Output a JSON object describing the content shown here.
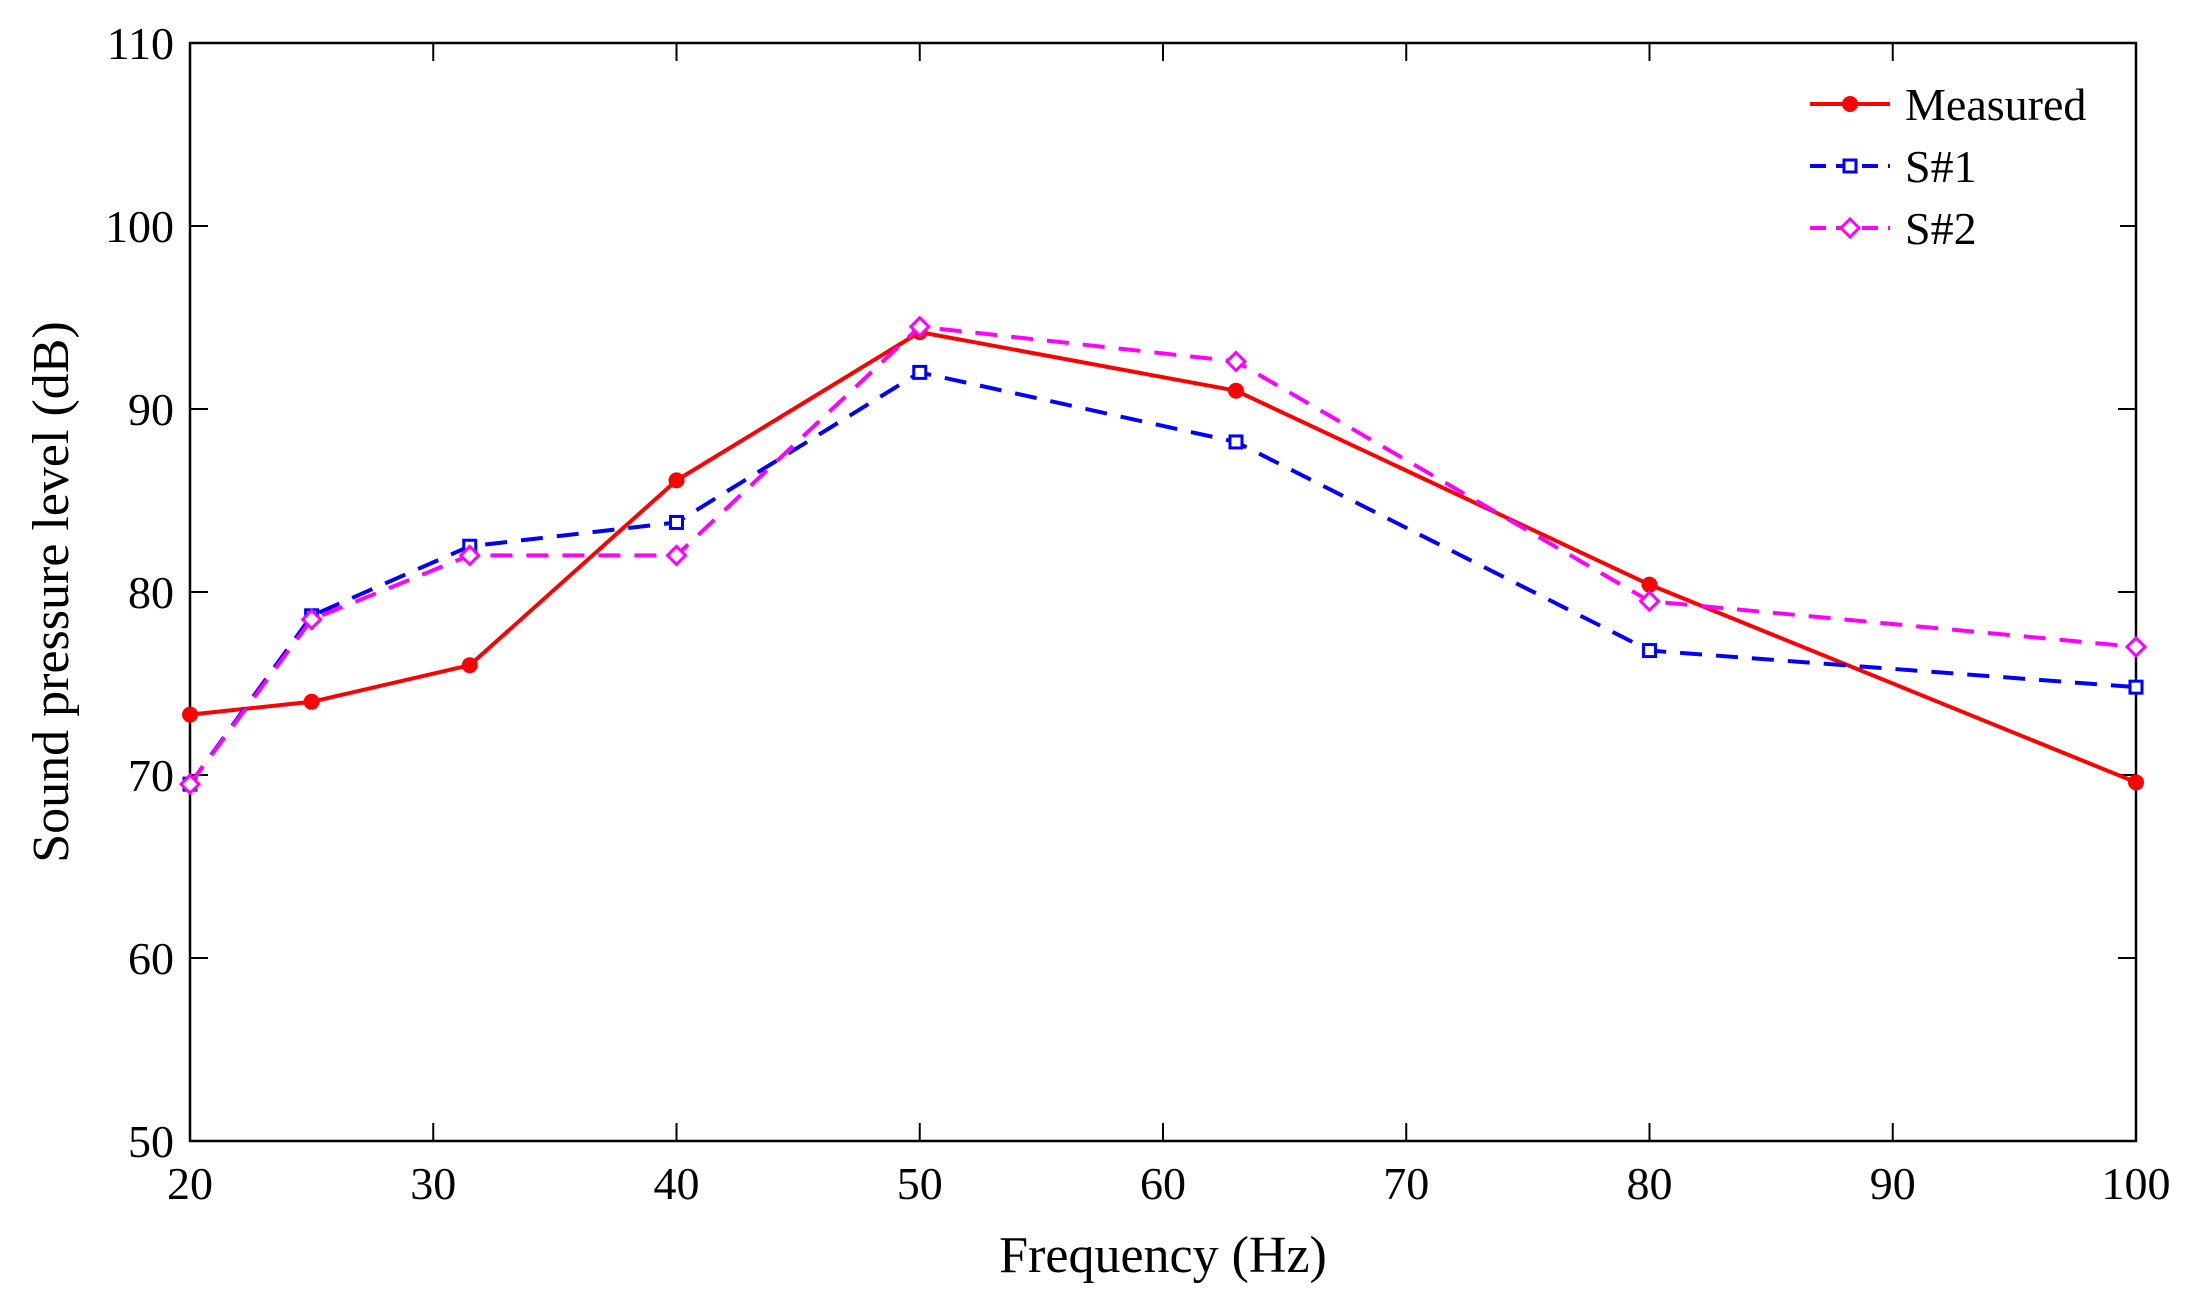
{
  "chart_data": {
    "type": "line",
    "title": "",
    "xlabel": "Frequency (Hz)",
    "ylabel": "Sound pressure level (dB)",
    "xlim": [
      20,
      100
    ],
    "ylim": [
      50,
      110
    ],
    "xticks": [
      20,
      30,
      40,
      50,
      60,
      70,
      80,
      90,
      100
    ],
    "yticks": [
      50,
      60,
      70,
      80,
      90,
      100,
      110
    ],
    "grid": false,
    "legend_position": "top-right",
    "x": [
      20,
      25,
      31.5,
      40,
      50,
      63,
      80,
      100
    ],
    "series": [
      {
        "name": "Measured",
        "color": "#ff0000",
        "line_style": "solid",
        "marker": "filled-circle",
        "values": [
          73.3,
          74.0,
          76.0,
          86.1,
          94.2,
          91.0,
          80.4,
          69.6
        ]
      },
      {
        "name": "S#1",
        "color": "#0000ff",
        "line_style": "dashed",
        "marker": "open-square",
        "values": [
          69.5,
          78.7,
          82.5,
          83.8,
          92.0,
          88.2,
          76.8,
          74.8
        ]
      },
      {
        "name": "S#2",
        "color": "#ff00ff",
        "line_style": "dashed",
        "marker": "open-diamond",
        "values": [
          69.5,
          78.5,
          82.0,
          82.0,
          94.5,
          92.6,
          79.5,
          77.0
        ]
      }
    ]
  }
}
